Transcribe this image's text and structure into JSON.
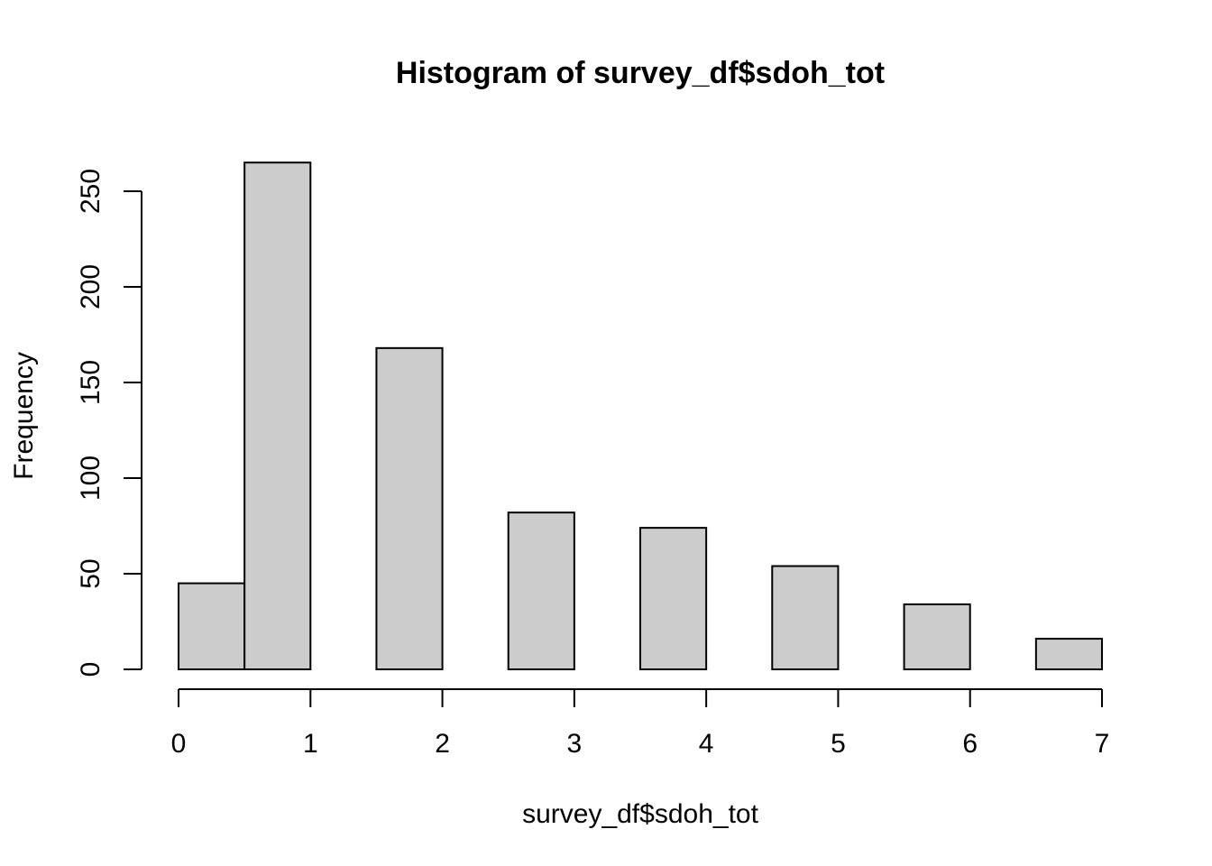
{
  "chart_data": {
    "type": "bar",
    "title": "Histogram of survey_df$sdoh_tot",
    "xlabel": "survey_df$sdoh_tot",
    "ylabel": "Frequency",
    "bins": [
      {
        "x0": 0.0,
        "x1": 0.5,
        "count": 45
      },
      {
        "x0": 0.5,
        "x1": 1.0,
        "count": 265
      },
      {
        "x0": 1.0,
        "x1": 1.5,
        "count": 0
      },
      {
        "x0": 1.5,
        "x1": 2.0,
        "count": 168
      },
      {
        "x0": 2.0,
        "x1": 2.5,
        "count": 0
      },
      {
        "x0": 2.5,
        "x1": 3.0,
        "count": 82
      },
      {
        "x0": 3.0,
        "x1": 3.5,
        "count": 0
      },
      {
        "x0": 3.5,
        "x1": 4.0,
        "count": 74
      },
      {
        "x0": 4.0,
        "x1": 4.5,
        "count": 0
      },
      {
        "x0": 4.5,
        "x1": 5.0,
        "count": 54
      },
      {
        "x0": 5.0,
        "x1": 5.5,
        "count": 0
      },
      {
        "x0": 5.5,
        "x1": 6.0,
        "count": 34
      },
      {
        "x0": 6.0,
        "x1": 6.5,
        "count": 0
      },
      {
        "x0": 6.5,
        "x1": 7.0,
        "count": 16
      }
    ],
    "xlim": [
      0,
      7
    ],
    "ylim": [
      0,
      265
    ],
    "x_ticks": [
      "0",
      "1",
      "2",
      "3",
      "4",
      "5",
      "6",
      "7"
    ],
    "y_ticks": [
      "0",
      "50",
      "100",
      "150",
      "200",
      "250"
    ],
    "bar_fill": "#cccccc",
    "bar_stroke": "#000000",
    "grid": false
  }
}
